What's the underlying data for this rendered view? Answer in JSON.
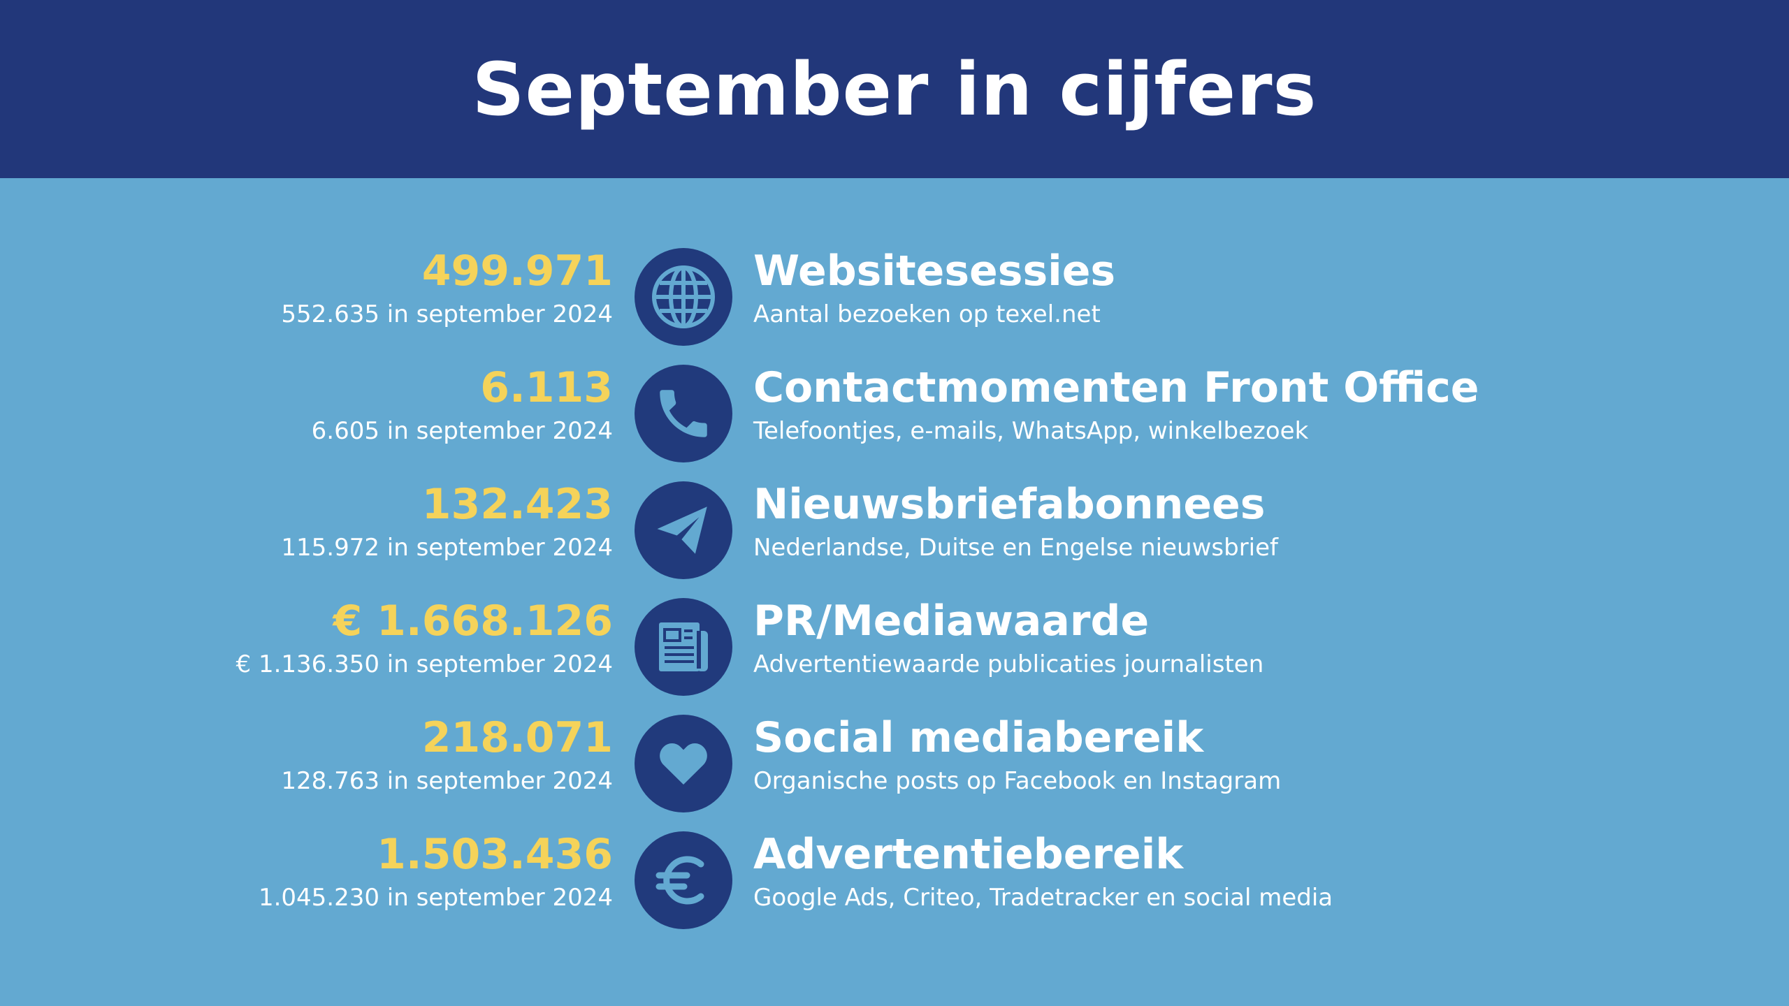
{
  "title": "September in cijfers",
  "colors": {
    "header": "#22377a",
    "background": "#63a9d1",
    "accent": "#f5d35a",
    "icon_circle": "#213a7c",
    "icon_glyph": "#63a9d1"
  },
  "stats": [
    {
      "value": "499.971",
      "previous": "552.635 in september 2024",
      "label": "Websitesessies",
      "description": "Aantal bezoeken op texel.net",
      "icon": "globe-icon"
    },
    {
      "value": "6.113",
      "previous": "6.605 in september 2024",
      "label": "Contactmomenten Front Office",
      "description": "Telefoontjes, e-mails, WhatsApp, winkelbezoek",
      "icon": "phone-icon"
    },
    {
      "value": "132.423",
      "previous": "115.972 in september 2024",
      "label": "Nieuwsbriefabonnees",
      "description": "Nederlandse, Duitse en Engelse nieuwsbrief",
      "icon": "paper-plane-icon"
    },
    {
      "value": "€ 1.668.126",
      "previous": "€ 1.136.350 in september 2024",
      "label": "PR/Mediawaarde",
      "description": "Advertentiewaarde publicaties journalisten",
      "icon": "newspaper-icon"
    },
    {
      "value": "218.071",
      "previous": "128.763 in september 2024",
      "label": "Social mediabereik",
      "description": "Organische posts op Facebook en Instagram",
      "icon": "heart-icon"
    },
    {
      "value": "1.503.436",
      "previous": "1.045.230 in september 2024",
      "label": "Advertentiebereik",
      "description": "Google Ads, Criteo, Tradetracker en social media",
      "icon": "euro-icon"
    }
  ]
}
